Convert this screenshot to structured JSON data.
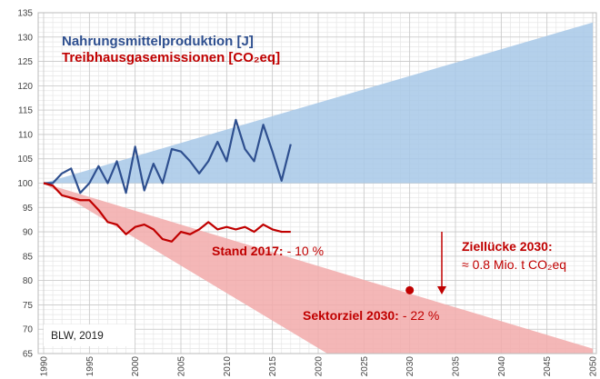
{
  "chart_data": {
    "type": "line",
    "xlim": [
      1990,
      2050
    ],
    "ylim": [
      65,
      135
    ],
    "xticks": [
      1990,
      1995,
      2000,
      2005,
      2010,
      2015,
      2020,
      2025,
      2030,
      2035,
      2040,
      2045,
      2050
    ],
    "yticks": [
      65,
      70,
      75,
      80,
      85,
      90,
      95,
      100,
      105,
      110,
      115,
      120,
      125,
      130,
      135
    ],
    "grid": true,
    "minor_grid": true,
    "x": [
      1990,
      1991,
      1992,
      1993,
      1994,
      1995,
      1996,
      1997,
      1998,
      1999,
      2000,
      2001,
      2002,
      2003,
      2004,
      2005,
      2006,
      2007,
      2008,
      2009,
      2010,
      2011,
      2012,
      2013,
      2014,
      2015,
      2016,
      2017
    ],
    "series": [
      {
        "name": "Nahrungsmittelproduktion [J]",
        "color": "#2e4f8f",
        "values": [
          100,
          100,
          102,
          103,
          98,
          100,
          103.5,
          100,
          104.5,
          98,
          107.5,
          98.5,
          104,
          100,
          107,
          106.5,
          104.5,
          102,
          104.5,
          108.5,
          104.5,
          113,
          107,
          104.5,
          112,
          106.5,
          100.5,
          108
        ]
      },
      {
        "name": "Treibhausgasemissionen [CO₂eq]",
        "color": "#c00000",
        "values": [
          100,
          99.5,
          97.5,
          97,
          96.5,
          96.5,
          94.5,
          92,
          91.5,
          89.5,
          91,
          91.5,
          90.5,
          88.5,
          88,
          90,
          89.5,
          90.5,
          92,
          90.5,
          91,
          90.5,
          91,
          90,
          91.5,
          90.5,
          90,
          90
        ]
      }
    ],
    "areas": [
      {
        "color": "#a7c8e8",
        "x": [
          1990,
          2050
        ],
        "upper": [
          100,
          133
        ],
        "lower": [
          100,
          100
        ]
      },
      {
        "color": "#f2aaaa",
        "x": [
          1990,
          2021,
          2050
        ],
        "upper": [
          100,
          82.4,
          66
        ],
        "lower": [
          100,
          65,
          65
        ]
      }
    ],
    "point": {
      "x": 2030,
      "y": 78,
      "color": "#c00000"
    },
    "annotations": [
      {
        "label": "Stand 2017:",
        "value": "- 10 %"
      },
      {
        "label": "Ziellücke 2030:",
        "value": "≈ 0.8 Mio. t CO₂eq"
      },
      {
        "label": "Sektorziel 2030:",
        "value": "- 22 %"
      }
    ],
    "source": "BLW, 2019"
  }
}
